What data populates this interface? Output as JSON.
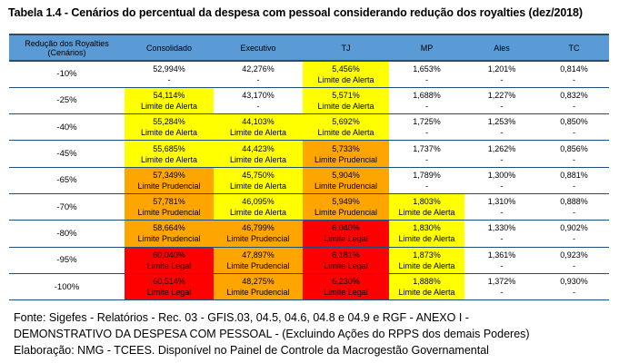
{
  "title": "Tabela 1.4 - Cenários do percentual da despesa com pessoal considerando redução dos royalties (dez/2018)",
  "colors": {
    "header": "#5b9bd5",
    "limite_alerta": "#ffff00",
    "limite_prudencial": "#ffa500",
    "limite_legal": "#ff0000"
  },
  "table": {
    "headers": [
      "Redução dos Royalties (Cenários)",
      "Consolidado",
      "Executivo",
      "TJ",
      "MP",
      "Ales",
      "TC"
    ],
    "rows": [
      {
        "label": "-10%",
        "cells": [
          {
            "value": "52,994%",
            "status": "-",
            "color": "none"
          },
          {
            "value": "42,276%",
            "status": "-",
            "color": "none"
          },
          {
            "value": "5,456%",
            "status": "Limite de Alerta",
            "color": "alerta"
          },
          {
            "value": "1,653%",
            "status": "-",
            "color": "none"
          },
          {
            "value": "1,201%",
            "status": "-",
            "color": "none"
          },
          {
            "value": "0,814%",
            "status": "-",
            "color": "none"
          }
        ]
      },
      {
        "label": "-25%",
        "cells": [
          {
            "value": "54,114%",
            "status": "Limite de Alerta",
            "color": "alerta"
          },
          {
            "value": "43,170%",
            "status": "-",
            "color": "none"
          },
          {
            "value": "5,571%",
            "status": "Limite de Alerta",
            "color": "alerta"
          },
          {
            "value": "1,688%",
            "status": "-",
            "color": "none"
          },
          {
            "value": "1,227%",
            "status": "-",
            "color": "none"
          },
          {
            "value": "0,832%",
            "status": "-",
            "color": "none"
          }
        ]
      },
      {
        "label": "-40%",
        "cells": [
          {
            "value": "55,284%",
            "status": "Limite de Alerta",
            "color": "alerta"
          },
          {
            "value": "44,103%",
            "status": "Limite de Alerta",
            "color": "alerta"
          },
          {
            "value": "5,692%",
            "status": "Limite de Alerta",
            "color": "alerta"
          },
          {
            "value": "1,725%",
            "status": "-",
            "color": "none"
          },
          {
            "value": "1,253%",
            "status": "-",
            "color": "none"
          },
          {
            "value": "0,850%",
            "status": "-",
            "color": "none"
          }
        ]
      },
      {
        "label": "-45%",
        "cells": [
          {
            "value": "55,685%",
            "status": "Limite de Alerta",
            "color": "alerta"
          },
          {
            "value": "44,423%",
            "status": "Limite de Alerta",
            "color": "alerta"
          },
          {
            "value": "5,733%",
            "status": "Limite Prudencial",
            "color": "prud"
          },
          {
            "value": "1,737%",
            "status": "-",
            "color": "none"
          },
          {
            "value": "1,262%",
            "status": "-",
            "color": "none"
          },
          {
            "value": "0,856%",
            "status": "-",
            "color": "none"
          }
        ]
      },
      {
        "label": "-65%",
        "cells": [
          {
            "value": "57,349%",
            "status": "Limite Prudencial",
            "color": "prud"
          },
          {
            "value": "45,750%",
            "status": "Limite de Alerta",
            "color": "alerta"
          },
          {
            "value": "5,904%",
            "status": "Limite Prudencial",
            "color": "prud"
          },
          {
            "value": "1,789%",
            "status": "-",
            "color": "none"
          },
          {
            "value": "1,300%",
            "status": "-",
            "color": "none"
          },
          {
            "value": "0,881%",
            "status": "-",
            "color": "none"
          }
        ]
      },
      {
        "label": "-70%",
        "cells": [
          {
            "value": "57,781%",
            "status": "Limite Prudencial",
            "color": "prud"
          },
          {
            "value": "46,095%",
            "status": "Limite de Alerta",
            "color": "alerta"
          },
          {
            "value": "5,949%",
            "status": "Limite Prudencial",
            "color": "prud"
          },
          {
            "value": "1,803%",
            "status": "Limite de Alerta",
            "color": "alerta"
          },
          {
            "value": "1,310%",
            "status": "-",
            "color": "none"
          },
          {
            "value": "0,888%",
            "status": "-",
            "color": "none"
          }
        ]
      },
      {
        "label": "-80%",
        "cells": [
          {
            "value": "58,664%",
            "status": "Limite Prudencial",
            "color": "prud"
          },
          {
            "value": "46,799%",
            "status": "Limite Prudencial",
            "color": "prud"
          },
          {
            "value": "6,040%",
            "status": "Limite Legal",
            "color": "legal"
          },
          {
            "value": "1,830%",
            "status": "Limite de Alerta",
            "color": "alerta"
          },
          {
            "value": "1,330%",
            "status": "-",
            "color": "none"
          },
          {
            "value": "0,902%",
            "status": "-",
            "color": "none"
          }
        ]
      },
      {
        "label": "-95%",
        "cells": [
          {
            "value": "60,040%",
            "status": "Limite Legal",
            "color": "legal"
          },
          {
            "value": "47,897%",
            "status": "Limite Prudencial",
            "color": "prud"
          },
          {
            "value": "6,181%",
            "status": "Limite Legal",
            "color": "legal"
          },
          {
            "value": "1,873%",
            "status": "Limite de Alerta",
            "color": "alerta"
          },
          {
            "value": "1,361%",
            "status": "-",
            "color": "none"
          },
          {
            "value": "0,923%",
            "status": "-",
            "color": "none"
          }
        ]
      },
      {
        "label": "-100%",
        "cells": [
          {
            "value": "60,514%",
            "status": "Limite Legal",
            "color": "legal"
          },
          {
            "value": "48,275%",
            "status": "Limite Prudencial",
            "color": "prud"
          },
          {
            "value": "6,230%",
            "status": "Limite Legal",
            "color": "legal"
          },
          {
            "value": "1,888%",
            "status": "Limite de Alerta",
            "color": "alerta"
          },
          {
            "value": "1,372%",
            "status": "-",
            "color": "none"
          },
          {
            "value": "0,930%",
            "status": "-",
            "color": "none"
          }
        ]
      }
    ]
  },
  "source": {
    "line1": "Fonte: Sigefes - Relatórios - Rec. 03 - GFIS.03, 04.5, 04.6, 04.8 e 04.9 e RGF - ANEXO I -",
    "line2": "DEMONSTRATIVO DA DESPESA COM PESSOAL - (Excluindo Ações do RPPS dos demais Poderes)",
    "line3": "Elaboração: NMG - TCEES. Disponível no Painel de Controle da Macrogestão Governamental"
  }
}
